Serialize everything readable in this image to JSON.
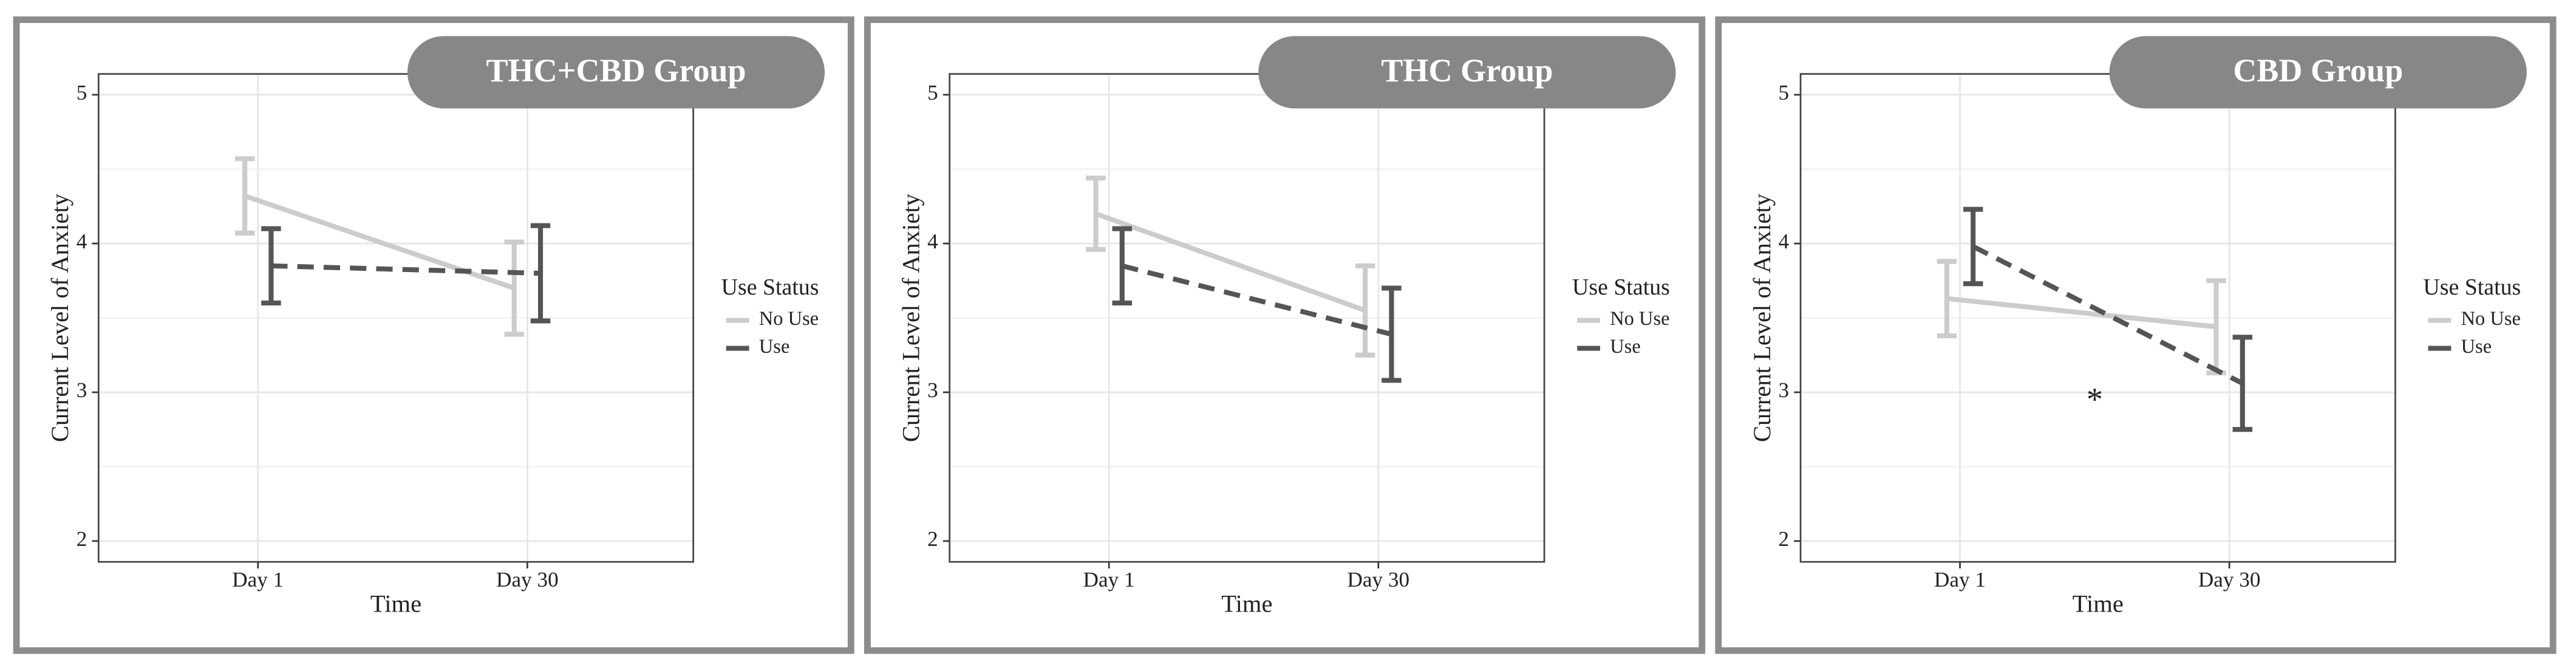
{
  "chart_data": [
    {
      "type": "line",
      "title": "THC+CBD Group",
      "x_label": "Time",
      "y_label": "Current Level of Anxiety",
      "legend_title": "Use Status",
      "categories": [
        "Day 1",
        "Day 30"
      ],
      "series": [
        {
          "name": "No Use",
          "color": "#cccccc",
          "line_style": "solid",
          "values": [
            4.32,
            3.7
          ],
          "errors": [
            0.25,
            0.31
          ]
        },
        {
          "name": "Use",
          "color": "#555555",
          "line_style": "dashed",
          "values": [
            3.85,
            3.8
          ],
          "errors": [
            0.25,
            0.32
          ]
        }
      ],
      "ylim": [
        1.86,
        5.14
      ],
      "yticks": [
        2,
        3,
        4,
        5
      ],
      "grid": true
    },
    {
      "type": "line",
      "title": "THC Group",
      "x_label": "Time",
      "y_label": "Current Level of Anxiety",
      "legend_title": "Use Status",
      "categories": [
        "Day 1",
        "Day 30"
      ],
      "series": [
        {
          "name": "No Use",
          "color": "#cccccc",
          "line_style": "solid",
          "values": [
            4.2,
            3.55
          ],
          "errors": [
            0.24,
            0.3
          ]
        },
        {
          "name": "Use",
          "color": "#555555",
          "line_style": "dashed",
          "values": [
            3.85,
            3.39
          ],
          "errors": [
            0.25,
            0.31
          ]
        }
      ],
      "ylim": [
        1.86,
        5.14
      ],
      "yticks": [
        2,
        3,
        4,
        5
      ],
      "grid": true
    },
    {
      "type": "line",
      "title": "CBD Group",
      "x_label": "Time",
      "y_label": "Current Level of Anxiety",
      "legend_title": "Use Status",
      "categories": [
        "Day 1",
        "Day 30"
      ],
      "series": [
        {
          "name": "No Use",
          "color": "#cccccc",
          "line_style": "solid",
          "values": [
            3.63,
            3.44
          ],
          "errors": [
            0.25,
            0.31
          ]
        },
        {
          "name": "Use",
          "color": "#555555",
          "line_style": "dashed",
          "values": [
            3.98,
            3.06
          ],
          "errors": [
            0.25,
            0.31
          ]
        }
      ],
      "annotation": "*",
      "ylim": [
        1.86,
        5.14
      ],
      "yticks": [
        2,
        3,
        4,
        5
      ],
      "grid": true
    }
  ]
}
